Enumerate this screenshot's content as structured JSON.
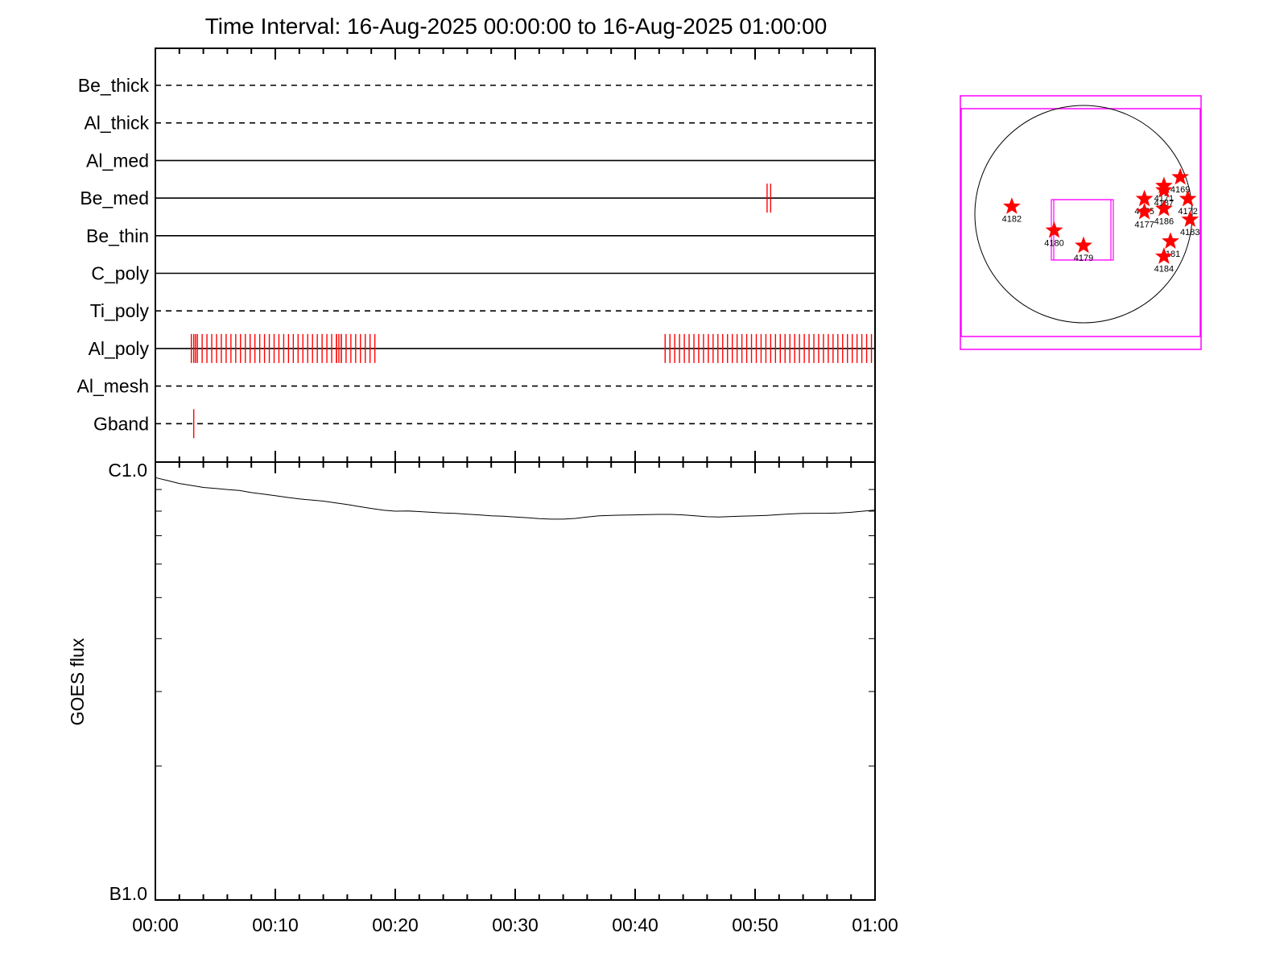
{
  "chart_data": [
    {
      "type": "timeline",
      "title": "Time Interval: 16-Aug-2025 00:00:00 to 16-Aug-2025 01:00:00",
      "x_ticks": [
        "00:00",
        "00:10",
        "00:20",
        "00:30",
        "00:40",
        "00:50",
        "01:00"
      ],
      "xlim_minutes": [
        0,
        60
      ],
      "rows": [
        {
          "name": "Be_thick",
          "style": "dashed",
          "events": []
        },
        {
          "name": "Al_thick",
          "style": "dashed",
          "events": []
        },
        {
          "name": "Al_med",
          "style": "solid",
          "events": []
        },
        {
          "name": "Be_med",
          "style": "solid",
          "events": [
            51.0,
            51.3
          ]
        },
        {
          "name": "Be_thin",
          "style": "solid",
          "events": []
        },
        {
          "name": "C_poly",
          "style": "solid",
          "events": []
        },
        {
          "name": "Ti_poly",
          "style": "dashed",
          "events": []
        },
        {
          "name": "Al_poly",
          "style": "solid",
          "events": [
            3.0,
            3.2,
            3.35,
            3.5,
            15.1,
            15.3,
            15.5
          ],
          "event_ranges": [
            [
              3.9,
              18.6,
              0.4
            ],
            [
              42.5,
              59.7,
              0.4
            ]
          ]
        },
        {
          "name": "Al_mesh",
          "style": "dashed",
          "events": []
        },
        {
          "name": "Gband",
          "style": "dashed",
          "events": [
            3.2
          ]
        }
      ],
      "event_color": "#ff0000"
    },
    {
      "type": "line",
      "ylabel": "GOES flux",
      "y_scale": "log",
      "y_ticks": [
        "C1.0",
        "B1.0"
      ],
      "ylim": [
        1e-06,
        1e-05
      ],
      "x_ticks": [
        "00:00",
        "00:10",
        "00:20",
        "00:30",
        "00:40",
        "00:50",
        "01:00"
      ],
      "xlim_minutes": [
        0,
        60
      ],
      "series": [
        {
          "x": [
            0,
            1,
            2,
            3,
            4,
            5,
            6,
            7,
            8,
            9,
            10,
            11,
            12,
            13,
            14,
            15,
            16,
            17,
            18,
            19,
            20,
            21,
            22,
            23,
            24,
            25,
            26,
            27,
            28,
            29,
            30,
            31,
            32,
            33,
            34,
            35,
            36,
            37,
            38,
            39,
            40,
            41,
            42,
            43,
            44,
            45,
            46,
            47,
            48,
            49,
            50,
            51,
            52,
            53,
            54,
            55,
            56,
            57,
            58,
            59,
            60
          ],
          "y": [
            9.6e-06,
            9.45e-06,
            9.3e-06,
            9.2e-06,
            9.1e-06,
            9.05e-06,
            9e-06,
            8.95e-06,
            8.85e-06,
            8.78e-06,
            8.7e-06,
            8.62e-06,
            8.55e-06,
            8.5e-06,
            8.45e-06,
            8.37e-06,
            8.29e-06,
            8.2e-06,
            8.12e-06,
            8.04e-06,
            8e-06,
            8.01e-06,
            7.98e-06,
            7.95e-06,
            7.92e-06,
            7.9e-06,
            7.87e-06,
            7.84e-06,
            7.8e-06,
            7.78e-06,
            7.75e-06,
            7.72e-06,
            7.68e-06,
            7.66e-06,
            7.66e-06,
            7.69e-06,
            7.75e-06,
            7.8e-06,
            7.82e-06,
            7.83e-06,
            7.84e-06,
            7.85e-06,
            7.86e-06,
            7.86e-06,
            7.84e-06,
            7.8e-06,
            7.76e-06,
            7.75e-06,
            7.77e-06,
            7.79e-06,
            7.8e-06,
            7.82e-06,
            7.85e-06,
            7.88e-06,
            7.9e-06,
            7.91e-06,
            7.91e-06,
            7.92e-06,
            7.95e-06,
            8e-06,
            8.05e-06
          ]
        }
      ]
    },
    {
      "type": "solar_disk_map",
      "active_regions": [
        {
          "id": "4182",
          "x": -0.66,
          "y": 0.07
        },
        {
          "id": "4180",
          "x": -0.27,
          "y": -0.15
        },
        {
          "id": "4179",
          "x": 0.0,
          "y": -0.29
        },
        {
          "id": "4175",
          "x": 0.56,
          "y": 0.14
        },
        {
          "id": "4177",
          "x": 0.56,
          "y": 0.02
        },
        {
          "id": "4171",
          "x": 0.74,
          "y": 0.26
        },
        {
          "id": "4187",
          "x": 0.74,
          "y": 0.22
        },
        {
          "id": "4169",
          "x": 0.89,
          "y": 0.34
        },
        {
          "id": "4186",
          "x": 0.74,
          "y": 0.05
        },
        {
          "id": "4172",
          "x": 0.96,
          "y": 0.14
        },
        {
          "id": "4183",
          "x": 0.98,
          "y": -0.05
        },
        {
          "id": "4181",
          "x": 0.8,
          "y": -0.25
        },
        {
          "id": "4184",
          "x": 0.74,
          "y": -0.39
        }
      ],
      "colors": {
        "star": "#ff0000",
        "frame": "#ff00ff",
        "disk": "#000000"
      }
    }
  ]
}
